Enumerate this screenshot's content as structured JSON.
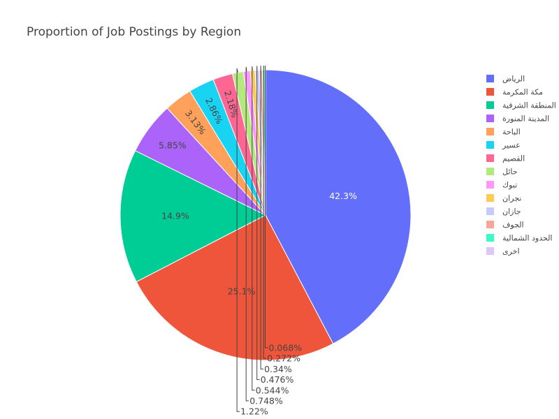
{
  "chart_data": {
    "type": "pie",
    "title": "Proportion of Job Postings by Region",
    "slices": [
      {
        "label": "الرياض",
        "percent": 42.3,
        "text": "42.3%",
        "color": "#636EFA"
      },
      {
        "label": "مكة المكرمة",
        "percent": 25.1,
        "text": "25.1%",
        "color": "#EF553B"
      },
      {
        "label": "المنطقة الشرقية",
        "percent": 14.9,
        "text": "14.9%",
        "color": "#00CC96"
      },
      {
        "label": "المدينة المنورة",
        "percent": 5.85,
        "text": "5.85%",
        "color": "#AB63FA"
      },
      {
        "label": "الباحة",
        "percent": 3.13,
        "text": "3.13%",
        "color": "#FFA15A"
      },
      {
        "label": "عسير",
        "percent": 2.86,
        "text": "2.86%",
        "color": "#19D3F3"
      },
      {
        "label": "القصيم",
        "percent": 2.18,
        "text": "2.18%",
        "color": "#FF6692"
      },
      {
        "label": "حائل",
        "percent": 1.22,
        "text": "1.22%",
        "color": "#B6E880"
      },
      {
        "label": "تبوك",
        "percent": 0.748,
        "text": "0.748%",
        "color": "#FF97FF"
      },
      {
        "label": "نجران",
        "percent": 0.544,
        "text": "0.544%",
        "color": "#FECB52"
      },
      {
        "label": "جازان",
        "percent": 0.476,
        "text": "0.476%",
        "color": "#C6CAFD"
      },
      {
        "label": "الجوف",
        "percent": 0.34,
        "text": "0.34%",
        "color": "#F7A799"
      },
      {
        "label": "الحدود الشمالية",
        "percent": 0.272,
        "text": "0.272%",
        "color": "#3DF9C4"
      },
      {
        "label": "اخرى",
        "percent": 0.068,
        "text": "0.068%",
        "color": "#DCC6FA"
      }
    ],
    "legend_position": "top-right"
  }
}
